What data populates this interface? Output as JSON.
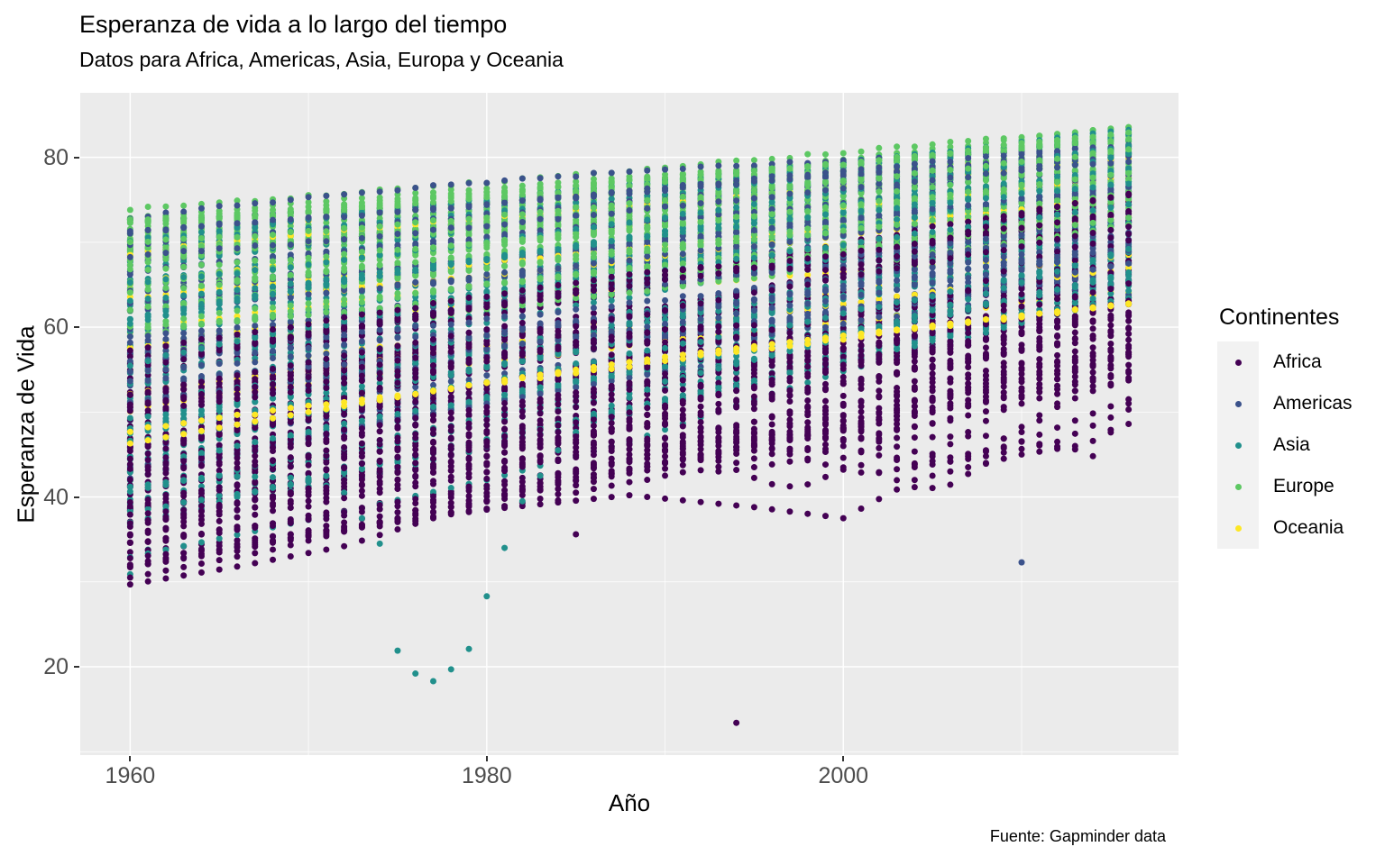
{
  "chart_data": {
    "type": "scatter",
    "title": "Esperanza de vida a lo largo del tiempo",
    "subtitle": "Datos para Africa, Americas, Asia, Europa y Oceania",
    "caption": "Fuente: Gapminder data",
    "xlabel": "Año",
    "ylabel": "Esperanza de Vida",
    "x_ticks": [
      1960,
      1980,
      2000
    ],
    "x_minor": [
      1970,
      1990,
      2010
    ],
    "y_ticks": [
      20,
      40,
      60,
      80
    ],
    "y_minor": [
      10,
      30,
      50,
      70
    ],
    "x_domain": [
      1957.2,
      2018.8
    ],
    "y_domain": [
      9.6,
      87.6
    ],
    "years": {
      "start": 1960,
      "end": 2016,
      "step": 1
    },
    "point_radius": 3.5,
    "grid": true,
    "legend_position": "right",
    "colors": {
      "panel_bg": "#EBEBEB",
      "grid": "#FFFFFF",
      "tick_label": "#4D4D4D",
      "tick_mark": "#333333",
      "text": "#000000",
      "legend_key_bg": "#F2F2F2",
      "background": "#FFFFFF"
    },
    "legend": {
      "title": "Continentes",
      "entries": [
        {
          "label": "Africa",
          "color": "#440154"
        },
        {
          "label": "Americas",
          "color": "#3B528B"
        },
        {
          "label": "Asia",
          "color": "#21908C"
        },
        {
          "label": "Europe",
          "color": "#5DC863"
        },
        {
          "label": "Oceania",
          "color": "#FDE725"
        }
      ]
    },
    "series": [
      {
        "name": "Africa",
        "color": "#440154",
        "n": 44,
        "start": [
          31.5,
          57.5
        ],
        "start_skew": 1.1,
        "end": [
          53,
          76
        ],
        "end_skew": 1.0,
        "jitter": 1.6,
        "wiggle": 0.55,
        "seed_offset": 1,
        "dip": {
          "prob": 0.32,
          "center": [
            1997,
            2006
          ],
          "depth": [
            2,
            9
          ],
          "width": [
            3.5,
            5.5
          ]
        }
      },
      {
        "name": "Americas",
        "color": "#3B528B",
        "n": 30,
        "start": [
          45,
          73.5
        ],
        "start_skew": 0.8,
        "end": [
          64.5,
          82.3
        ],
        "end_skew": 0.9,
        "jitter": 1.4,
        "wiggle": 0.5,
        "seed_offset": 2
      },
      {
        "name": "Asia",
        "color": "#21908C",
        "n": 40,
        "start": [
          36,
          71
        ],
        "start_skew": 1.0,
        "end": [
          63,
          83.9
        ],
        "end_skew": 1.0,
        "jitter": 1.5,
        "wiggle": 0.55,
        "seed_offset": 3
      },
      {
        "name": "Europe",
        "color": "#5DC863",
        "n": 36,
        "start": [
          53.5,
          73.7
        ],
        "start_skew": 0.45,
        "end": [
          71.5,
          83.5
        ],
        "end_skew": 0.6,
        "jitter": 1.2,
        "wiggle": 0.5,
        "seed_offset": 4
      },
      {
        "name": "Oceania",
        "color": "#FDE725",
        "n": 11,
        "start": [
          47,
          71.2
        ],
        "start_skew": 1.0,
        "end": [
          62.5,
          82.9
        ],
        "end_skew": 1.1,
        "jitter": 1.5,
        "wiggle": 0.5,
        "seed_offset": 5
      }
    ],
    "highlights": [
      {
        "continent": "Africa",
        "anchors": [
          [
            1960,
            29.7
          ],
          [
            1966,
            31.8
          ],
          [
            1972,
            34.2
          ],
          [
            1977,
            37.5
          ],
          [
            1985,
            43
          ],
          [
            1995,
            48
          ],
          [
            2005,
            53.5
          ],
          [
            2016,
            58.5
          ]
        ]
      },
      {
        "continent": "Africa",
        "anchors": [
          [
            1960,
            30.5
          ],
          [
            1968,
            33.8
          ],
          [
            1975,
            37.5
          ],
          [
            1982,
            44
          ],
          [
            1990,
            50.5
          ],
          [
            2000,
            55.5
          ],
          [
            2016,
            61.5
          ]
        ]
      },
      {
        "continent": "Africa",
        "anchors": [
          [
            1960,
            33.5
          ],
          [
            1970,
            35.8
          ],
          [
            1980,
            38.5
          ],
          [
            1988,
            40.2
          ],
          [
            1995,
            38.8
          ],
          [
            2000,
            37.5
          ],
          [
            2004,
            42
          ],
          [
            2010,
            45
          ],
          [
            2013,
            46
          ],
          [
            2014,
            44.8
          ],
          [
            2016,
            51
          ]
        ]
      },
      {
        "continent": "Africa",
        "anchors": [
          [
            1960,
            38.4
          ],
          [
            1970,
            42
          ],
          [
            1980,
            44
          ],
          [
            1983,
            44.8
          ],
          [
            1984,
            39.6
          ],
          [
            1985,
            35.6
          ],
          [
            1986,
            44
          ],
          [
            1992,
            47
          ],
          [
            2000,
            51.9
          ],
          [
            2016,
            65.5
          ]
        ]
      },
      {
        "continent": "Africa",
        "anchors": [
          [
            1960,
            43
          ],
          [
            1975,
            45.5
          ],
          [
            1988,
            46.6
          ],
          [
            1992,
            44.5
          ],
          [
            1993,
            43
          ],
          [
            1994,
            13.4
          ],
          [
            1995,
            43.5
          ],
          [
            1998,
            44.5
          ],
          [
            2005,
            52.5
          ],
          [
            2016,
            67.8
          ]
        ]
      },
      {
        "continent": "Africa",
        "anchors": [
          [
            1960,
            46.5
          ],
          [
            1985,
            57.5
          ],
          [
            1992,
            58.5
          ],
          [
            2000,
            48
          ],
          [
            2004,
            43.5
          ],
          [
            2008,
            44.8
          ],
          [
            2012,
            46.5
          ],
          [
            2016,
            50.3
          ]
        ]
      },
      {
        "continent": "Africa",
        "anchors": [
          [
            1960,
            44.5
          ],
          [
            1986,
            60
          ],
          [
            1995,
            55
          ],
          [
            2002,
            46.5
          ],
          [
            2006,
            44.2
          ],
          [
            2010,
            46.5
          ],
          [
            2016,
            51.5
          ]
        ]
      },
      {
        "continent": "Africa",
        "anchors": [
          [
            1960,
            52
          ],
          [
            1982,
            60.5
          ],
          [
            1992,
            53
          ],
          [
            2000,
            46
          ],
          [
            2004,
            43.8
          ],
          [
            2008,
            45.5
          ],
          [
            2012,
            51
          ],
          [
            2016,
            57
          ]
        ]
      },
      {
        "continent": "Africa",
        "anchors": [
          [
            1960,
            50.5
          ],
          [
            1988,
            62.5
          ],
          [
            1996,
            52
          ],
          [
            2002,
            47.5
          ],
          [
            2006,
            49
          ],
          [
            2012,
            59
          ],
          [
            2016,
            66.5
          ]
        ]
      },
      {
        "continent": "Africa",
        "anchors": [
          [
            1960,
            36.5
          ],
          [
            1970,
            41
          ],
          [
            1980,
            46
          ],
          [
            1990,
            48.5
          ],
          [
            2000,
            46.8
          ],
          [
            2008,
            47.2
          ],
          [
            2013,
            45.6
          ],
          [
            2016,
            48.6
          ]
        ]
      },
      {
        "continent": "Asia",
        "anchors": [
          [
            1960,
            30.9
          ],
          [
            1961,
            33.8
          ],
          [
            1962,
            38.5
          ],
          [
            1963,
            42.5
          ],
          [
            1965,
            49
          ],
          [
            1968,
            55
          ],
          [
            1972,
            60.5
          ],
          [
            1980,
            65.5
          ],
          [
            1990,
            69.1
          ],
          [
            2000,
            71.8
          ],
          [
            2016,
            76.4
          ]
        ]
      },
      {
        "continent": "Asia",
        "anchors": [
          [
            1960,
            32.9
          ],
          [
            1970,
            37.3
          ],
          [
            1980,
            42
          ],
          [
            1988,
            46.5
          ],
          [
            1995,
            51.5
          ],
          [
            2000,
            54.8
          ],
          [
            2010,
            60.5
          ],
          [
            2016,
            63.5
          ]
        ]
      },
      {
        "continent": "Asia",
        "anchors": [
          [
            1960,
            41.2
          ],
          [
            1965,
            42.5
          ],
          [
            1970,
            42.2
          ],
          [
            1972,
            40.5
          ],
          [
            1974,
            34.5
          ],
          [
            1975,
            21.9
          ],
          [
            1976,
            19.2
          ],
          [
            1977,
            18.3
          ],
          [
            1978,
            19.7
          ],
          [
            1979,
            22.1
          ],
          [
            1980,
            28.3
          ],
          [
            1981,
            34
          ],
          [
            1982,
            39.5
          ],
          [
            1984,
            45.5
          ],
          [
            1986,
            49.8
          ],
          [
            1990,
            53.6
          ],
          [
            2000,
            58.7
          ],
          [
            2016,
            69.2
          ]
        ]
      },
      {
        "continent": "Americas",
        "anchors": [
          [
            1960,
            42.2
          ],
          [
            1970,
            47.1
          ],
          [
            1980,
            51
          ],
          [
            1990,
            54.8
          ],
          [
            2000,
            57.5
          ],
          [
            2005,
            59
          ],
          [
            2009,
            60.3
          ],
          [
            2010,
            32.3
          ],
          [
            2011,
            61.2
          ],
          [
            2016,
            63.8
          ]
        ]
      },
      {
        "continent": "Americas",
        "anchors": [
          [
            1960,
            43.5
          ],
          [
            1970,
            46.7
          ],
          [
            1980,
            52
          ],
          [
            1990,
            57.1
          ],
          [
            2000,
            62
          ],
          [
            2016,
            69.5
          ]
        ]
      },
      {
        "continent": "Oceania",
        "anchors": [
          [
            1960,
            46.3
          ],
          [
            1970,
            50
          ],
          [
            1980,
            53.5
          ],
          [
            1990,
            56.5
          ],
          [
            2000,
            59
          ],
          [
            2016,
            62.8
          ]
        ]
      }
    ],
    "generator": {
      "seed": 987654321,
      "year_noise": 0.3,
      "exp_range": [
        0.82,
        1.25
      ]
    }
  }
}
